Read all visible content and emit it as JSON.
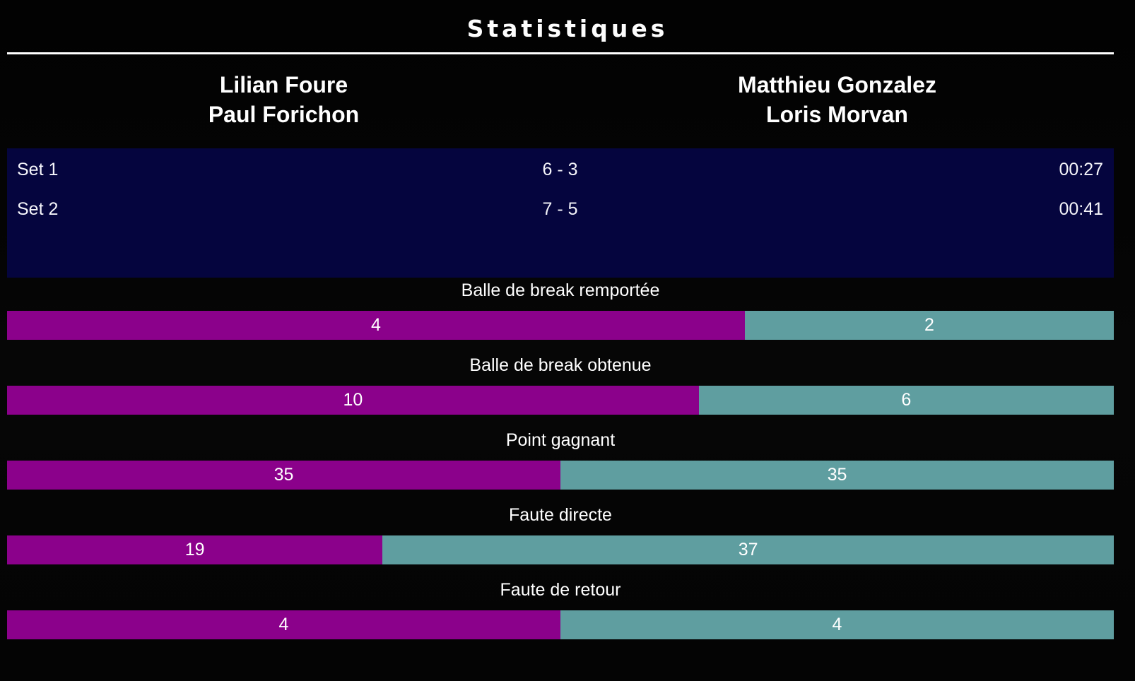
{
  "header": {
    "title": "Statistiques"
  },
  "teams": {
    "home": {
      "player1": "Lilian Foure",
      "player2": "Paul Forichon"
    },
    "away": {
      "player1": "Matthieu Gonzalez",
      "player2": "Loris Morvan"
    }
  },
  "sets": [
    {
      "label": "Set 1",
      "score": "6 - 3",
      "duration": "00:27"
    },
    {
      "label": "Set 2",
      "score": "7 - 5",
      "duration": "00:41"
    }
  ],
  "stats": [
    {
      "label": "Balle de break remportée",
      "home": 4,
      "away": 2
    },
    {
      "label": "Balle de break obtenue",
      "home": 10,
      "away": 6
    },
    {
      "label": "Point gagnant",
      "home": 35,
      "away": 35
    },
    {
      "label": "Faute directe",
      "home": 19,
      "away": 37
    },
    {
      "label": "Faute de retour",
      "home": 4,
      "away": 4
    }
  ],
  "chart_data": {
    "type": "bar",
    "orientation": "horizontal-split-proportional",
    "categories": [
      "Balle de break remportée",
      "Balle de break obtenue",
      "Point gagnant",
      "Faute directe",
      "Faute de retour"
    ],
    "series": [
      {
        "name": "Lilian Foure / Paul Forichon",
        "values": [
          4,
          10,
          35,
          19,
          4
        ]
      },
      {
        "name": "Matthieu Gonzalez / Loris Morvan",
        "values": [
          2,
          6,
          35,
          37,
          4
        ]
      }
    ],
    "legend_position": "none",
    "value_labels": "inside-center"
  },
  "colors": {
    "home": "#8b018b",
    "away": "#5f9ea0",
    "panel": "#05053e",
    "background": "#040404",
    "text": "#ffffff"
  }
}
